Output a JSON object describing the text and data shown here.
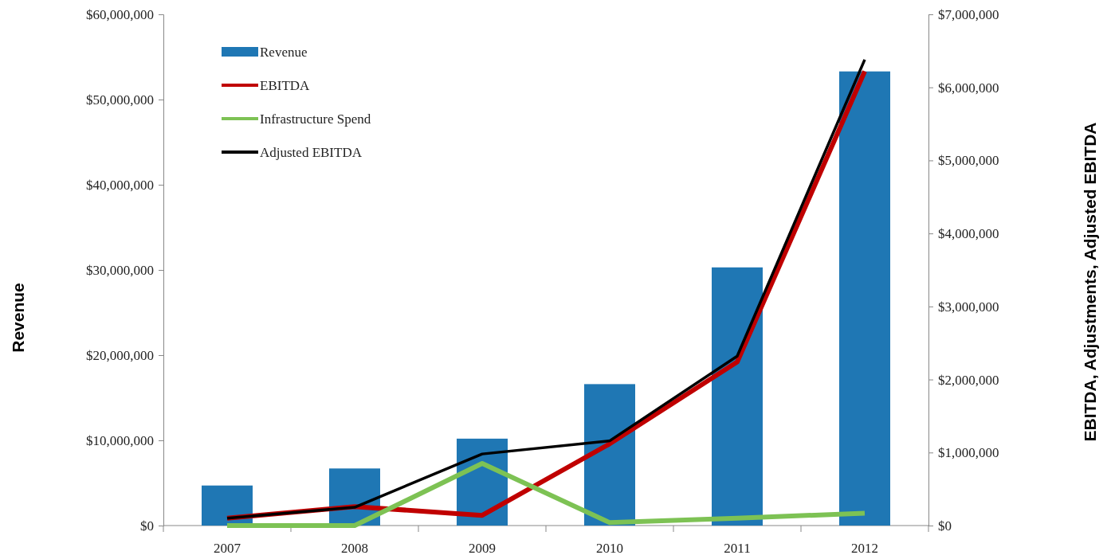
{
  "chart_data": {
    "type": "bar",
    "ylabel": "Revenue",
    "y2label": "EBITDA, Adjustments, Adjusted EBITDA",
    "categories": [
      "2007",
      "2008",
      "2009",
      "2010",
      "2011",
      "2012"
    ],
    "series": [
      {
        "name": "Revenue",
        "color": "#1f77b4",
        "values": [
          4700000,
          6700000,
          10200000,
          16600000,
          30300000,
          53300000
        ]
      },
      {
        "name": "EBITDA",
        "type": "line",
        "axis": "y2",
        "color": "#c00000",
        "values": [
          100000,
          260000,
          140000,
          1120000,
          2240000,
          6220000
        ]
      },
      {
        "name": "Infrastructure Spend",
        "type": "line",
        "axis": "y2",
        "color": "#7dc254",
        "values": [
          0,
          0,
          850000,
          40000,
          100000,
          170000
        ]
      },
      {
        "name": "Adjusted EBITDA",
        "type": "line",
        "axis": "y2",
        "color": "#000000",
        "values": [
          100000,
          250000,
          980000,
          1160000,
          2320000,
          6380000
        ]
      }
    ],
    "ylim": [
      0,
      60000000
    ],
    "yticks": [
      {
        "value": 0,
        "label": "$0"
      },
      {
        "value": 10000000,
        "label": "$10,000,000"
      },
      {
        "value": 20000000,
        "label": "$20,000,000"
      },
      {
        "value": 30000000,
        "label": "$30,000,000"
      },
      {
        "value": 40000000,
        "label": "$40,000,000"
      },
      {
        "value": 50000000,
        "label": "$50,000,000"
      },
      {
        "value": 60000000,
        "label": "$60,000,000"
      }
    ],
    "y2lim": [
      0,
      7000000
    ],
    "y2ticks": [
      {
        "value": 0,
        "label": "$0"
      },
      {
        "value": 1000000,
        "label": "$1,000,000"
      },
      {
        "value": 2000000,
        "label": "$2,000,000"
      },
      {
        "value": 3000000,
        "label": "$3,000,000"
      },
      {
        "value": 4000000,
        "label": "$4,000,000"
      },
      {
        "value": 5000000,
        "label": "$5,000,000"
      },
      {
        "value": 6000000,
        "label": "$6,000,000"
      },
      {
        "value": 7000000,
        "label": "$7,000,000"
      }
    ],
    "legend": "top left",
    "grid": false,
    "line_style": "solid",
    "marker": "none"
  }
}
